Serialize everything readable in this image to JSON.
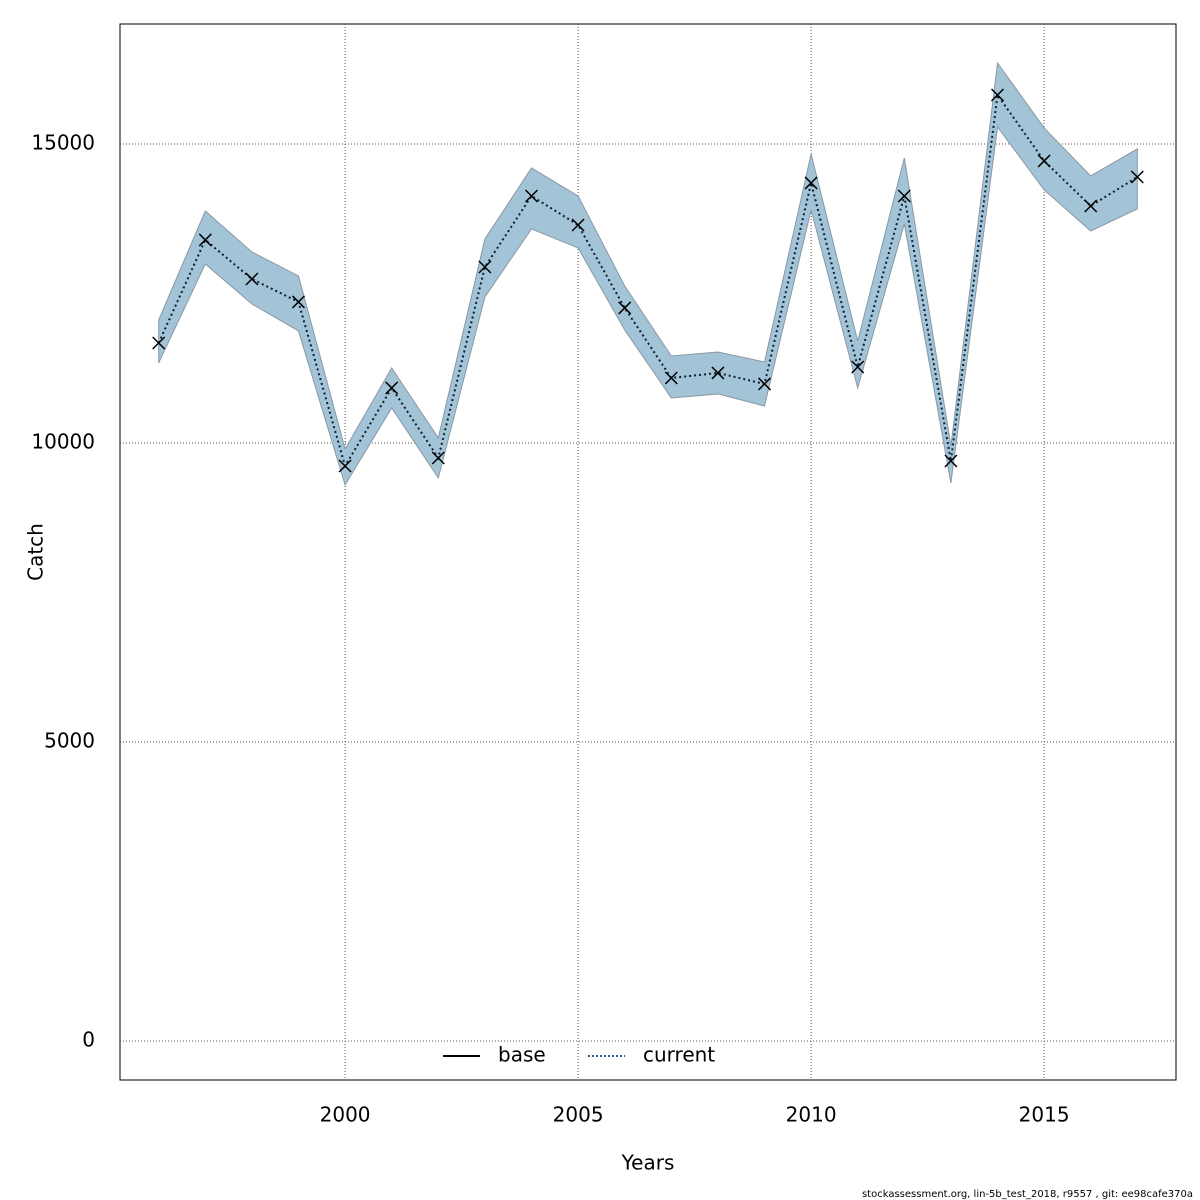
{
  "chart_data": {
    "type": "line",
    "xlabel": "Years",
    "ylabel": "Catch",
    "footer": "stockassessment.org, lin-5b_test_2018, r9557 , git: ee98cafe370a",
    "x": [
      1996,
      1997,
      1998,
      1999,
      2000,
      2001,
      2002,
      2003,
      2004,
      2005,
      2006,
      2007,
      2008,
      2009,
      2010,
      2011,
      2012,
      2013,
      2014,
      2015,
      2016,
      2017
    ],
    "series": [
      {
        "name": "current",
        "color": "#0b1e33",
        "band_color": "#a3c4d7",
        "band_edge": "#8a98a4",
        "values": [
          11672,
          13395,
          12742,
          12358,
          9615,
          10920,
          9749,
          12943,
          14130,
          13645,
          12258,
          11087,
          11171,
          10987,
          14348,
          11271,
          14130,
          9699,
          15819,
          14716,
          13963,
          14448
        ],
        "upper": [
          12057,
          13880,
          13194,
          12793,
          9900,
          11254,
          10084,
          13411,
          14599,
          14130,
          12625,
          11455,
          11522,
          11355,
          14833,
          11706,
          14766,
          9950,
          16355,
          15268,
          14465,
          14917
        ],
        "lower": [
          11338,
          12993,
          12324,
          11873,
          9298,
          10585,
          9415,
          12441,
          13579,
          13261,
          11890,
          10753,
          10820,
          10619,
          13896,
          10920,
          13662,
          9331,
          15284,
          14231,
          13545,
          13913
        ]
      }
    ],
    "legend": [
      {
        "name": "base",
        "color": "#000000",
        "dash": "solid"
      },
      {
        "name": "current",
        "color": "#1f5f9f",
        "dash": "dotted"
      }
    ],
    "xlim": [
      1995.17,
      2017.83
    ],
    "ylim": [
      -652,
      17006
    ],
    "xticks": [
      2000,
      2005,
      2010,
      2015
    ],
    "yticks": [
      0,
      5000,
      10000,
      15000
    ],
    "grid": true,
    "legend_position": "bottom"
  }
}
